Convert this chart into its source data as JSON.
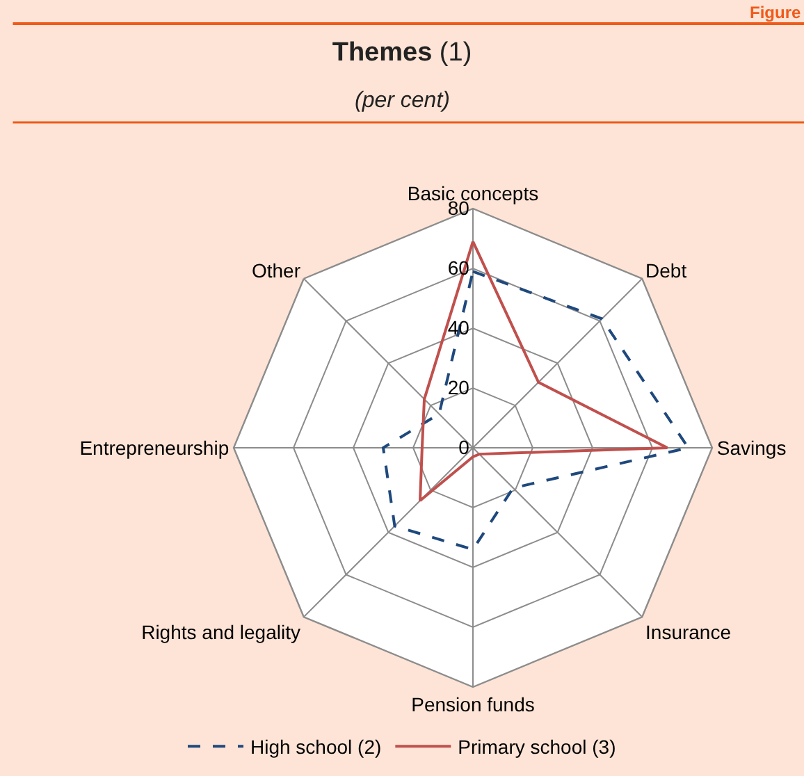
{
  "chart_data": {
    "type": "radar",
    "title": "Themes (1)",
    "subtitle": "(per cent)",
    "categories": [
      "Basic concepts",
      "Debt",
      "Savings",
      "Insurance",
      "Pension funds",
      "Rights and legality",
      "Entrepreneurship",
      "Other"
    ],
    "series": [
      {
        "name": "High school (2)",
        "color": "#1f497d",
        "line_style": "dashed",
        "values": [
          59,
          61,
          72,
          19,
          34,
          37,
          30,
          16
        ]
      },
      {
        "name": "Primary school (3)",
        "color": "#c0504d",
        "line_style": "solid",
        "values": [
          69,
          31,
          65,
          3,
          3,
          25,
          17,
          23
        ]
      }
    ],
    "ylim": [
      0,
      80
    ],
    "yticks": [
      0,
      20,
      40,
      60,
      80
    ],
    "grid": true,
    "legend": "bottom",
    "marker": "none",
    "annotations": [
      "Figure"
    ]
  }
}
